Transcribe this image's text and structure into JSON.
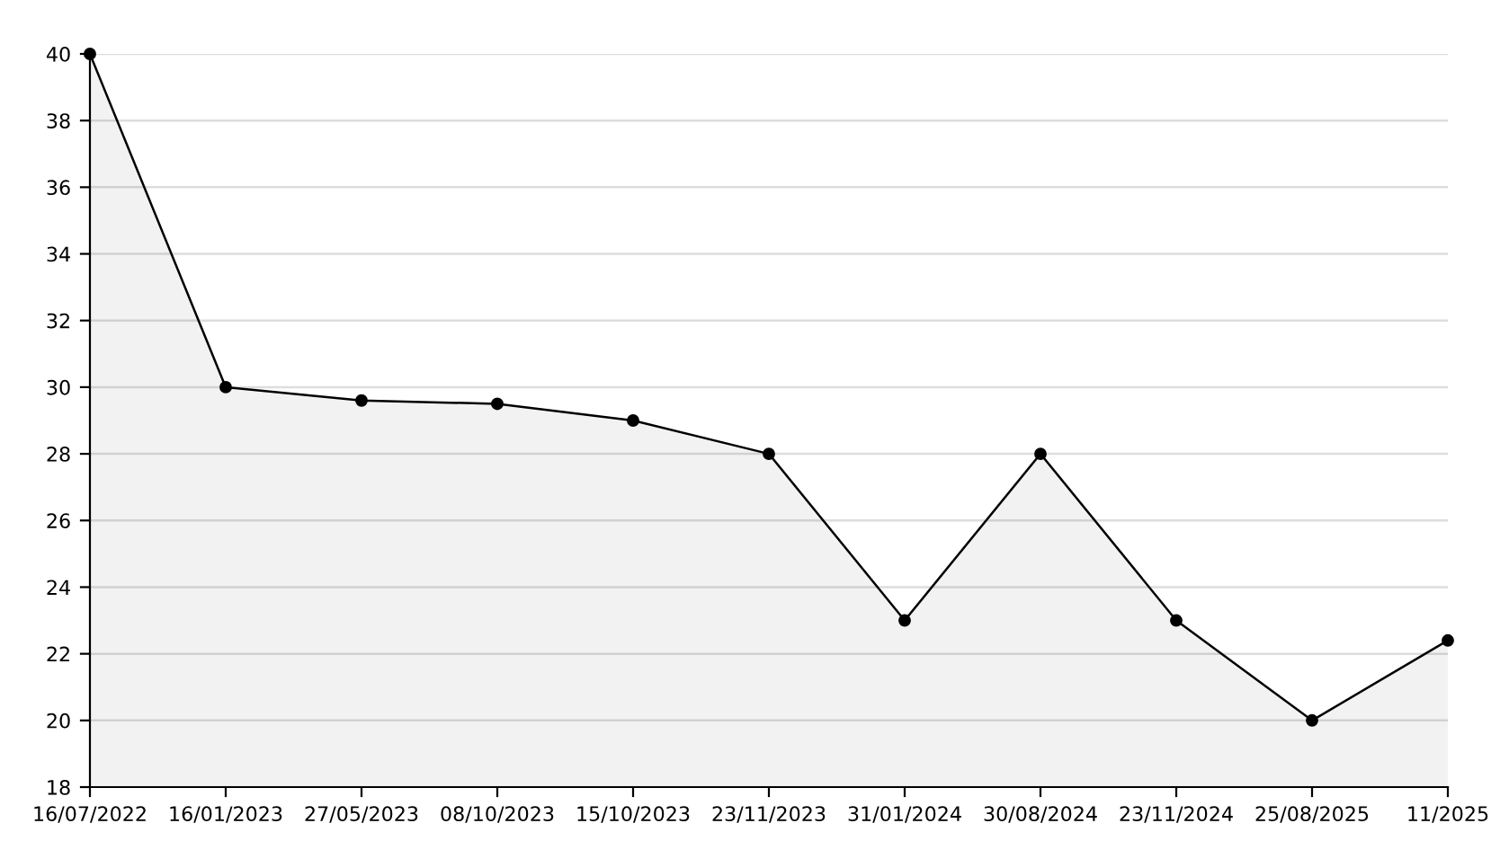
{
  "chart_data": {
    "type": "area",
    "categories": [
      "16/07/2022",
      "16/01/2023",
      "27/05/2023",
      "08/10/2023",
      "15/10/2023",
      "23/11/2023",
      "31/01/2024",
      "30/08/2024",
      "23/11/2024",
      "25/08/2025",
      "11/2025"
    ],
    "series": [
      {
        "color": "#000000",
        "values": [
          40,
          30,
          29.6,
          29.5,
          29,
          28,
          23,
          28,
          23,
          20,
          22.4
        ]
      }
    ],
    "ylim": [
      18,
      40
    ],
    "yticks": [
      18,
      20,
      22,
      24,
      26,
      28,
      30,
      32,
      34,
      36,
      38,
      40
    ],
    "grid": "y",
    "marker": "circle",
    "line_style": "solid",
    "legend": false
  }
}
